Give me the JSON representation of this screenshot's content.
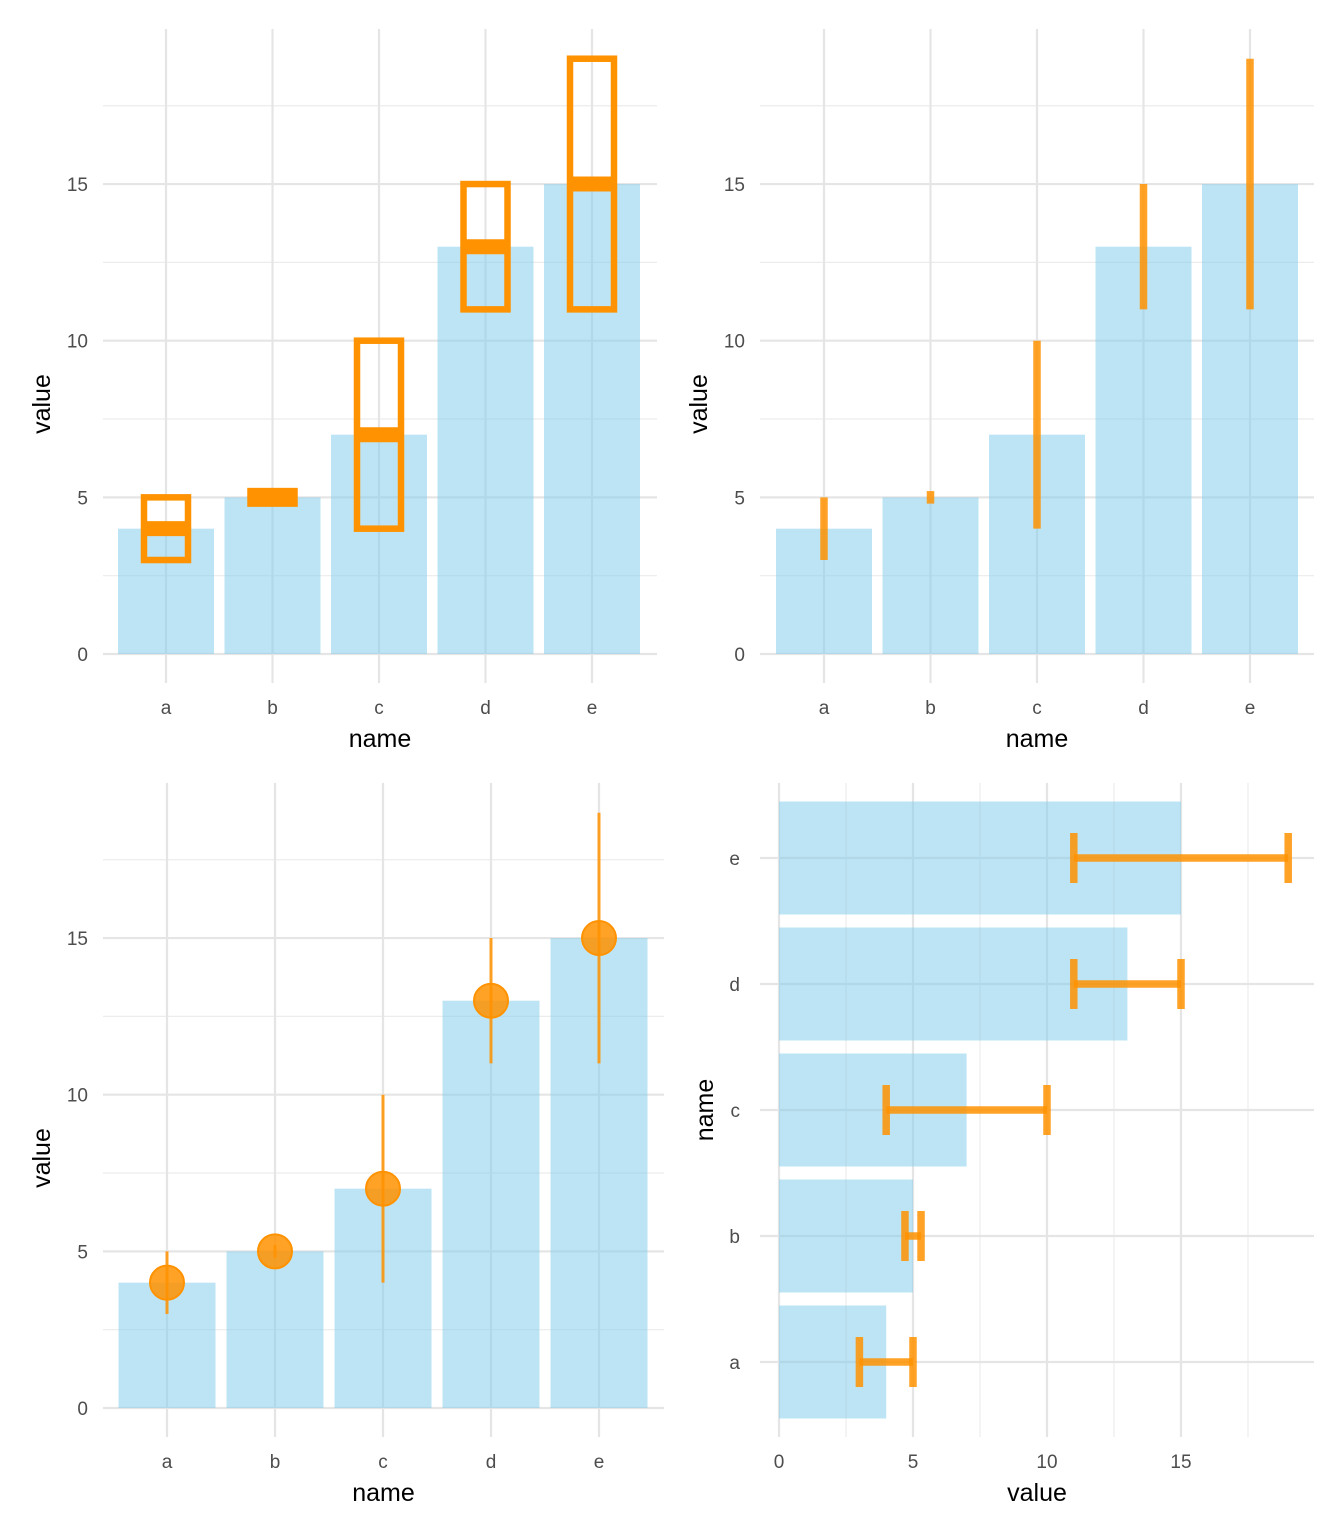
{
  "colors": {
    "bar_fill": "#87CEEB",
    "bar_opacity": 0.55,
    "range_color": "#FF9200",
    "range_opacity_linerange": 0.85,
    "range_opacity_point": 0.85,
    "grid": "#e5e5e5"
  },
  "chart_data": [
    {
      "id": "panel-crossbar",
      "type": "bar",
      "overlay": "crossbar",
      "categories": [
        "a",
        "b",
        "c",
        "d",
        "e"
      ],
      "values": [
        4,
        5,
        7,
        13,
        15
      ],
      "lower": [
        3,
        4.8,
        4,
        11,
        11
      ],
      "upper": [
        5,
        5.2,
        10,
        15,
        19
      ],
      "xlabel": "name",
      "ylabel": "value",
      "yticks": [
        0,
        5,
        10,
        15
      ],
      "ylim": [
        0,
        19
      ],
      "grid": true
    },
    {
      "id": "panel-linerange",
      "type": "bar",
      "overlay": "linerange",
      "categories": [
        "a",
        "b",
        "c",
        "d",
        "e"
      ],
      "values": [
        4,
        5,
        7,
        13,
        15
      ],
      "lower": [
        3,
        4.8,
        4,
        11,
        11
      ],
      "upper": [
        5,
        5.2,
        10,
        15,
        19
      ],
      "xlabel": "name",
      "ylabel": "value",
      "yticks": [
        0,
        5,
        10,
        15
      ],
      "ylim": [
        0,
        19
      ],
      "grid": true
    },
    {
      "id": "panel-pointrange",
      "type": "bar",
      "overlay": "pointrange",
      "categories": [
        "a",
        "b",
        "c",
        "d",
        "e"
      ],
      "values": [
        4,
        5,
        7,
        13,
        15
      ],
      "lower": [
        3,
        4.8,
        4,
        11,
        11
      ],
      "upper": [
        5,
        5.2,
        10,
        15,
        19
      ],
      "xlabel": "name",
      "ylabel": "value",
      "yticks": [
        0,
        5,
        10,
        15
      ],
      "ylim": [
        0,
        19
      ],
      "grid": true
    },
    {
      "id": "panel-errorbar-horizontal",
      "type": "bar",
      "orientation": "horizontal",
      "overlay": "errorbar",
      "categories": [
        "a",
        "b",
        "c",
        "d",
        "e"
      ],
      "values": [
        4,
        5,
        7,
        13,
        15
      ],
      "lower": [
        3,
        4.7,
        4,
        11,
        11
      ],
      "upper": [
        5,
        5.3,
        10,
        15,
        19
      ],
      "xlabel": "value",
      "ylabel": "name",
      "xticks": [
        0,
        5,
        10,
        15
      ],
      "xlim": [
        0,
        19
      ],
      "grid": true
    }
  ]
}
